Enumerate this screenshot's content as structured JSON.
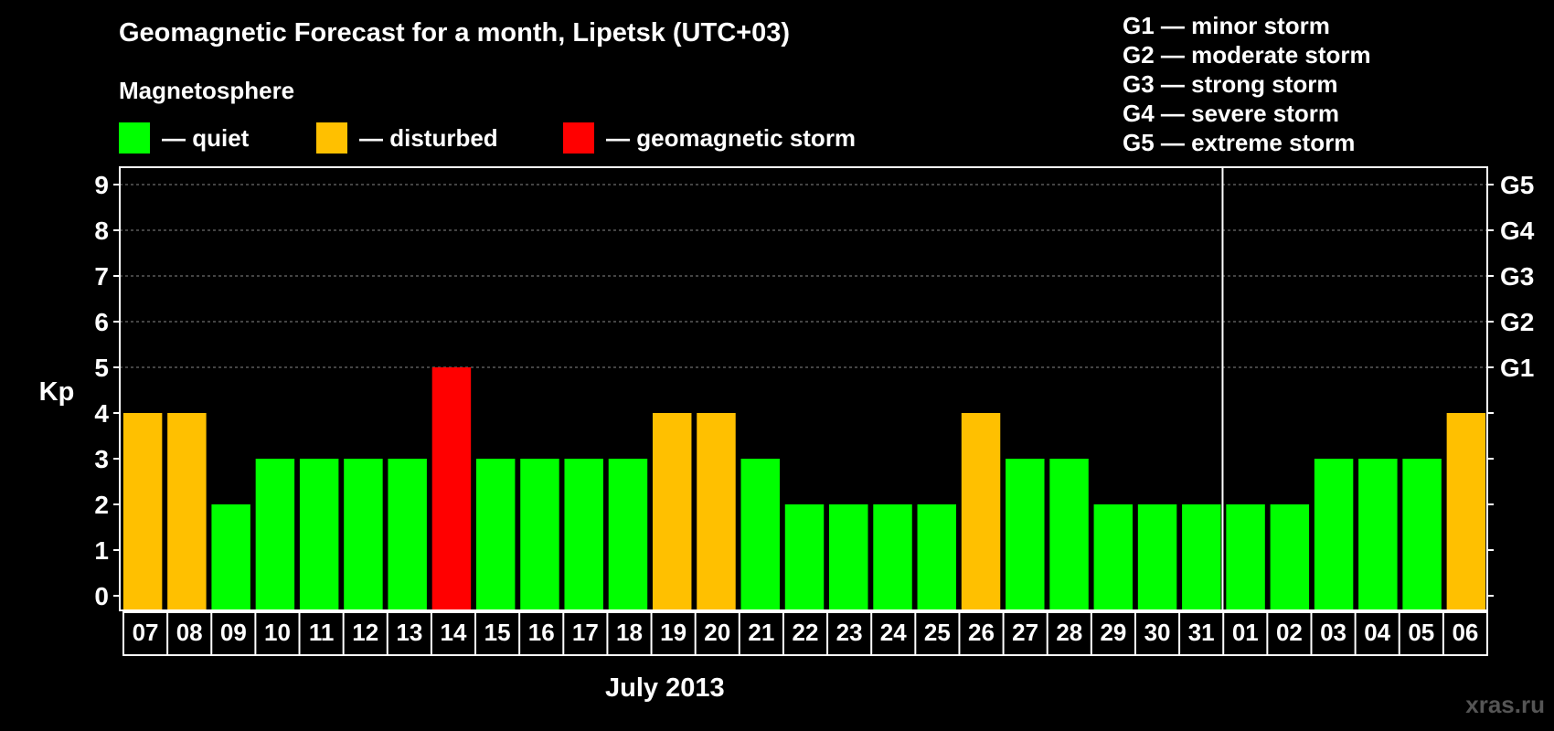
{
  "title": "Geomagnetic Forecast for a month, Lipetsk (UTC+03)",
  "subtitle": "Magnetosphere",
  "legend": [
    {
      "label": "— quiet",
      "color": "#00ff00"
    },
    {
      "label": "— disturbed",
      "color": "#ffc000"
    },
    {
      "label": "— geomagnetic storm",
      "color": "#ff0000"
    }
  ],
  "g_levels": [
    "G1 — minor storm",
    "G2 — moderate storm",
    "G3 — strong storm",
    "G4 — severe storm",
    "G5 — extreme storm"
  ],
  "watermark": "xras.ru",
  "chart_data": {
    "type": "bar",
    "title": "Geomagnetic Forecast for a month, Lipetsk (UTC+03)",
    "xlabel": "July 2013",
    "ylabel": "Kp",
    "ylim": [
      0,
      9
    ],
    "yticks": [
      0,
      1,
      2,
      3,
      4,
      5,
      6,
      7,
      8,
      9
    ],
    "right_ticks": [
      {
        "value": 5,
        "label": "G1"
      },
      {
        "value": 6,
        "label": "G2"
      },
      {
        "value": 7,
        "label": "G3"
      },
      {
        "value": 8,
        "label": "G4"
      },
      {
        "value": 9,
        "label": "G5"
      }
    ],
    "categories": [
      "07",
      "08",
      "09",
      "10",
      "11",
      "12",
      "13",
      "14",
      "15",
      "16",
      "17",
      "18",
      "19",
      "20",
      "21",
      "22",
      "23",
      "24",
      "25",
      "26",
      "27",
      "28",
      "29",
      "30",
      "31",
      "01",
      "02",
      "03",
      "04",
      "05",
      "06"
    ],
    "values": [
      4,
      4,
      2,
      3,
      3,
      3,
      3,
      5,
      3,
      3,
      3,
      3,
      4,
      4,
      3,
      2,
      2,
      2,
      2,
      4,
      3,
      3,
      2,
      2,
      2,
      2,
      2,
      3,
      3,
      3,
      4
    ],
    "level_colors": {
      "quiet": "#00ff00",
      "disturbed": "#ffc000",
      "storm": "#ff0000"
    },
    "month_separator_after": "31",
    "grid": "dashed horizontal at 6-9"
  }
}
